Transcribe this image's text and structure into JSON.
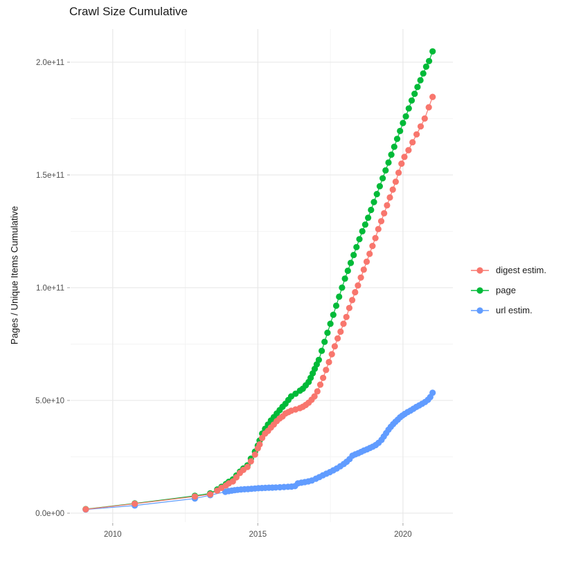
{
  "chart_data": {
    "type": "scatter",
    "title": "Crawl Size Cumulative",
    "xlabel": "",
    "ylabel": "Pages / Unique Items Cumulative",
    "value_unit": "1e9",
    "x_domain": [
      2008.55,
      2021.72
    ],
    "y_domain_billions": [
      -4,
      214.7
    ],
    "x_ticks": [
      2010,
      2015,
      2020
    ],
    "x_tick_labels": [
      "2010",
      "2015",
      "2020"
    ],
    "x_minor_ticks": [
      2012.5,
      2017.5
    ],
    "y_ticks_billions": [
      0,
      50,
      100,
      150,
      200
    ],
    "y_tick_labels": [
      "0.0e+00",
      "5.0e+10",
      "1.0e+11",
      "1.5e+11",
      "2.0e+11"
    ],
    "y_minor_ticks_billions": [
      25,
      75,
      125,
      175
    ],
    "grid": true,
    "legend_position": "right",
    "series": [
      {
        "name": "digest estim.",
        "color": "#F8766D",
        "points_year_billions": [
          [
            2009.07,
            1.7
          ],
          [
            2010.76,
            4.2
          ],
          [
            2012.83,
            7.4
          ],
          [
            2013.36,
            8.4
          ],
          [
            2013.6,
            10.0
          ],
          [
            2013.75,
            11.2
          ],
          [
            2013.9,
            12.3
          ],
          [
            2014.0,
            13.2
          ],
          [
            2014.14,
            14.1
          ],
          [
            2014.26,
            15.9
          ],
          [
            2014.38,
            17.8
          ],
          [
            2014.5,
            19.2
          ],
          [
            2014.64,
            20.5
          ],
          [
            2014.76,
            23.0
          ],
          [
            2014.9,
            26.0
          ],
          [
            2015.0,
            28.8
          ],
          [
            2015.06,
            30.5
          ],
          [
            2015.15,
            33.4
          ],
          [
            2015.25,
            35.3
          ],
          [
            2015.35,
            36.5
          ],
          [
            2015.45,
            38.0
          ],
          [
            2015.55,
            39.3
          ],
          [
            2015.65,
            40.8
          ],
          [
            2015.75,
            42.0
          ],
          [
            2015.85,
            42.9
          ],
          [
            2015.95,
            44.2
          ],
          [
            2016.05,
            44.8
          ],
          [
            2016.15,
            45.4
          ],
          [
            2016.3,
            46.0
          ],
          [
            2016.45,
            46.6
          ],
          [
            2016.55,
            47.2
          ],
          [
            2016.65,
            48.0
          ],
          [
            2016.75,
            49.0
          ],
          [
            2016.85,
            50.3
          ],
          [
            2016.95,
            51.8
          ],
          [
            2017.05,
            54.0
          ],
          [
            2017.15,
            57.0
          ],
          [
            2017.25,
            60.0
          ],
          [
            2017.35,
            63.5
          ],
          [
            2017.45,
            67.0
          ],
          [
            2017.55,
            70.5
          ],
          [
            2017.65,
            74.0
          ],
          [
            2017.75,
            77.5
          ],
          [
            2017.85,
            80.5
          ],
          [
            2017.95,
            84.0
          ],
          [
            2018.05,
            87.0
          ],
          [
            2018.15,
            91.0
          ],
          [
            2018.25,
            94.5
          ],
          [
            2018.35,
            98.0
          ],
          [
            2018.45,
            101.0
          ],
          [
            2018.55,
            104.5
          ],
          [
            2018.65,
            108.0
          ],
          [
            2018.75,
            111.5
          ],
          [
            2018.85,
            115.0
          ],
          [
            2018.95,
            118.5
          ],
          [
            2019.05,
            122.0
          ],
          [
            2019.15,
            126.0
          ],
          [
            2019.25,
            129.5
          ],
          [
            2019.35,
            133.0
          ],
          [
            2019.45,
            136.5
          ],
          [
            2019.55,
            140.0
          ],
          [
            2019.65,
            143.5
          ],
          [
            2019.75,
            147.0
          ],
          [
            2019.85,
            151.0
          ],
          [
            2019.95,
            155.0
          ],
          [
            2020.05,
            158.0
          ],
          [
            2020.19,
            161.0
          ],
          [
            2020.33,
            164.5
          ],
          [
            2020.47,
            168.0
          ],
          [
            2020.61,
            171.5
          ],
          [
            2020.75,
            175.0
          ],
          [
            2020.89,
            180.0
          ],
          [
            2021.02,
            184.6
          ]
        ]
      },
      {
        "name": "page",
        "color": "#00BA38",
        "points_year_billions": [
          [
            2009.07,
            1.8
          ],
          [
            2010.76,
            4.3
          ],
          [
            2012.83,
            7.7
          ],
          [
            2013.36,
            8.8
          ],
          [
            2013.6,
            10.5
          ],
          [
            2013.75,
            11.7
          ],
          [
            2013.9,
            12.9
          ],
          [
            2014.0,
            13.9
          ],
          [
            2014.14,
            15.0
          ],
          [
            2014.26,
            16.7
          ],
          [
            2014.38,
            18.4
          ],
          [
            2014.5,
            19.8
          ],
          [
            2014.64,
            21.2
          ],
          [
            2014.76,
            24.2
          ],
          [
            2014.9,
            27.3
          ],
          [
            2015.0,
            30.0
          ],
          [
            2015.06,
            32.2
          ],
          [
            2015.15,
            35.3
          ],
          [
            2015.25,
            37.4
          ],
          [
            2015.35,
            39.3
          ],
          [
            2015.45,
            41.1
          ],
          [
            2015.55,
            42.6
          ],
          [
            2015.65,
            44.2
          ],
          [
            2015.75,
            45.7
          ],
          [
            2015.85,
            47.2
          ],
          [
            2015.95,
            48.5
          ],
          [
            2016.05,
            50.2
          ],
          [
            2016.15,
            51.8
          ],
          [
            2016.3,
            53.0
          ],
          [
            2016.45,
            54.3
          ],
          [
            2016.55,
            55.2
          ],
          [
            2016.65,
            56.7
          ],
          [
            2016.75,
            58.2
          ],
          [
            2016.82,
            60.0
          ],
          [
            2016.89,
            62.0
          ],
          [
            2016.96,
            64.0
          ],
          [
            2017.03,
            66.0
          ],
          [
            2017.1,
            68.0
          ],
          [
            2017.2,
            72.0
          ],
          [
            2017.3,
            76.0
          ],
          [
            2017.4,
            80.0
          ],
          [
            2017.5,
            84.0
          ],
          [
            2017.6,
            88.0
          ],
          [
            2017.7,
            92.0
          ],
          [
            2017.8,
            96.0
          ],
          [
            2017.9,
            100.0
          ],
          [
            2018.0,
            104.0
          ],
          [
            2018.1,
            107.5
          ],
          [
            2018.2,
            111.0
          ],
          [
            2018.3,
            114.5
          ],
          [
            2018.4,
            118.0
          ],
          [
            2018.5,
            121.5
          ],
          [
            2018.6,
            125.0
          ],
          [
            2018.7,
            128.0
          ],
          [
            2018.8,
            131.0
          ],
          [
            2018.9,
            134.5
          ],
          [
            2019.0,
            138.0
          ],
          [
            2019.1,
            141.5
          ],
          [
            2019.2,
            145.0
          ],
          [
            2019.3,
            148.5
          ],
          [
            2019.4,
            152.0
          ],
          [
            2019.5,
            155.5
          ],
          [
            2019.6,
            159.0
          ],
          [
            2019.7,
            162.5
          ],
          [
            2019.8,
            166.0
          ],
          [
            2019.9,
            169.5
          ],
          [
            2020.0,
            173.0
          ],
          [
            2020.1,
            176.0
          ],
          [
            2020.2,
            179.5
          ],
          [
            2020.3,
            183.0
          ],
          [
            2020.4,
            186.0
          ],
          [
            2020.5,
            189.0
          ],
          [
            2020.6,
            192.0
          ],
          [
            2020.7,
            195.0
          ],
          [
            2020.8,
            198.0
          ],
          [
            2020.9,
            200.5
          ],
          [
            2021.02,
            204.8
          ]
        ]
      },
      {
        "name": "url estim.",
        "color": "#619CFF",
        "points_year_billions": [
          [
            2009.07,
            1.6
          ],
          [
            2010.76,
            3.4
          ],
          [
            2012.83,
            6.5
          ],
          [
            2013.36,
            8.0
          ],
          [
            2013.88,
            9.5
          ],
          [
            2014.0,
            9.8
          ],
          [
            2014.1,
            10.0
          ],
          [
            2014.2,
            10.2
          ],
          [
            2014.3,
            10.35
          ],
          [
            2014.42,
            10.5
          ],
          [
            2014.54,
            10.6
          ],
          [
            2014.66,
            10.7
          ],
          [
            2014.78,
            10.8
          ],
          [
            2014.9,
            10.95
          ],
          [
            2015.02,
            11.05
          ],
          [
            2015.14,
            11.15
          ],
          [
            2015.26,
            11.2
          ],
          [
            2015.38,
            11.3
          ],
          [
            2015.5,
            11.35
          ],
          [
            2015.62,
            11.4
          ],
          [
            2015.76,
            11.5
          ],
          [
            2015.9,
            11.6
          ],
          [
            2016.04,
            11.7
          ],
          [
            2016.16,
            11.8
          ],
          [
            2016.28,
            12.0
          ],
          [
            2016.38,
            13.2
          ],
          [
            2016.5,
            13.5
          ],
          [
            2016.62,
            13.8
          ],
          [
            2016.74,
            14.1
          ],
          [
            2016.86,
            14.5
          ],
          [
            2017.0,
            15.3
          ],
          [
            2017.12,
            16.0
          ],
          [
            2017.24,
            16.8
          ],
          [
            2017.36,
            17.5
          ],
          [
            2017.48,
            18.2
          ],
          [
            2017.6,
            19.0
          ],
          [
            2017.72,
            19.8
          ],
          [
            2017.84,
            20.8
          ],
          [
            2017.96,
            21.8
          ],
          [
            2018.06,
            22.8
          ],
          [
            2018.16,
            24.0
          ],
          [
            2018.26,
            25.5
          ],
          [
            2018.36,
            26.1
          ],
          [
            2018.46,
            26.6
          ],
          [
            2018.56,
            27.2
          ],
          [
            2018.66,
            27.8
          ],
          [
            2018.76,
            28.3
          ],
          [
            2018.86,
            28.9
          ],
          [
            2018.96,
            29.5
          ],
          [
            2019.06,
            30.2
          ],
          [
            2019.16,
            31.2
          ],
          [
            2019.26,
            32.5
          ],
          [
            2019.34,
            34.0
          ],
          [
            2019.42,
            35.5
          ],
          [
            2019.5,
            37.0
          ],
          [
            2019.58,
            38.3
          ],
          [
            2019.66,
            39.5
          ],
          [
            2019.74,
            40.5
          ],
          [
            2019.82,
            41.5
          ],
          [
            2019.9,
            42.5
          ],
          [
            2019.98,
            43.3
          ],
          [
            2020.06,
            44.0
          ],
          [
            2020.16,
            44.8
          ],
          [
            2020.26,
            45.5
          ],
          [
            2020.36,
            46.3
          ],
          [
            2020.46,
            47.1
          ],
          [
            2020.56,
            47.8
          ],
          [
            2020.66,
            48.5
          ],
          [
            2020.76,
            49.3
          ],
          [
            2020.86,
            50.3
          ],
          [
            2020.94,
            51.5
          ],
          [
            2021.02,
            53.4
          ]
        ]
      }
    ]
  }
}
